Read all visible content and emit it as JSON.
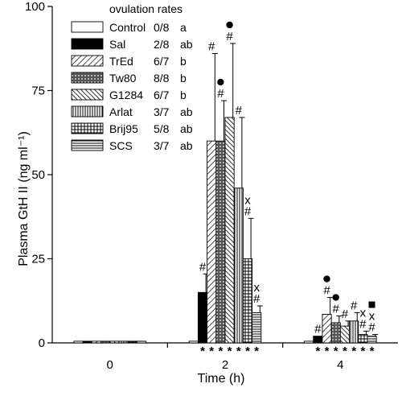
{
  "chart_data": {
    "type": "bar",
    "ylabel": "Plasma GtH II (ng ml⁻¹)",
    "xlabel": "Time (h)",
    "ylim": [
      0,
      100
    ],
    "yticks": [
      0,
      25,
      50,
      75,
      100
    ],
    "categories": [
      "0",
      "2",
      "4"
    ],
    "legend": {
      "title": "ovulation rates",
      "placement": "top-left"
    },
    "series": [
      {
        "name": "Control",
        "rate": "0/8",
        "group": "a",
        "pattern": "white",
        "values": [
          0.5,
          0.5,
          0.5
        ],
        "errors": [
          0,
          0,
          0
        ]
      },
      {
        "name": "Sal",
        "rate": "2/8",
        "group": "ab",
        "pattern": "black",
        "values": [
          0.5,
          15,
          2
        ],
        "errors": [
          0,
          5.5,
          0
        ]
      },
      {
        "name": "TrEd",
        "rate": "6/7",
        "group": "b",
        "pattern": "diag",
        "values": [
          0.5,
          60,
          8.5
        ],
        "errors": [
          0,
          26,
          5
        ]
      },
      {
        "name": "Tw80",
        "rate": "8/8",
        "group": "b",
        "pattern": "dots",
        "values": [
          0.5,
          60,
          6
        ],
        "errors": [
          0,
          12,
          2
        ]
      },
      {
        "name": "G1284",
        "rate": "6/7",
        "group": "b",
        "pattern": "diag2",
        "values": [
          0.5,
          67,
          5
        ],
        "errors": [
          0,
          22,
          1.5
        ]
      },
      {
        "name": "Arlat",
        "rate": "3/7",
        "group": "ab",
        "pattern": "vlines",
        "values": [
          0.5,
          46,
          6.5
        ],
        "errors": [
          0,
          21,
          2.5
        ]
      },
      {
        "name": "Brij95",
        "rate": "5/8",
        "group": "ab",
        "pattern": "grid",
        "values": [
          0.5,
          25,
          2.5
        ],
        "errors": [
          0,
          12,
          1
        ]
      },
      {
        "name": "SCS",
        "rate": "3/7",
        "group": "ab",
        "pattern": "hlines",
        "values": [
          0.5,
          9,
          2
        ],
        "errors": [
          0,
          2,
          0.5
        ]
      }
    ],
    "annotations": [
      {
        "category": 1,
        "series": 1,
        "symbols": [
          "#"
        ]
      },
      {
        "category": 1,
        "series": 2,
        "symbols": [
          "#"
        ]
      },
      {
        "category": 1,
        "series": 3,
        "symbols": [
          "●",
          "#"
        ]
      },
      {
        "category": 1,
        "series": 4,
        "symbols": [
          "●",
          "#"
        ]
      },
      {
        "category": 1,
        "series": 5,
        "symbols": [
          "#"
        ]
      },
      {
        "category": 1,
        "series": 6,
        "symbols": [
          "x",
          "#"
        ]
      },
      {
        "category": 1,
        "series": 7,
        "symbols": [
          "x",
          "#"
        ]
      },
      {
        "category": 2,
        "series": 1,
        "symbols": [
          "#"
        ]
      },
      {
        "category": 2,
        "series": 2,
        "symbols": [
          "●",
          "#"
        ]
      },
      {
        "category": 2,
        "series": 3,
        "symbols": [
          "●",
          "#"
        ]
      },
      {
        "category": 2,
        "series": 4,
        "symbols": [
          "#"
        ]
      },
      {
        "category": 2,
        "series": 5,
        "symbols": [
          "#"
        ]
      },
      {
        "category": 2,
        "series": 6,
        "symbols": [
          "x",
          "#"
        ]
      },
      {
        "category": 2,
        "series": 7,
        "symbols": [
          "■",
          "x",
          "#"
        ]
      }
    ],
    "axis_marker": "*",
    "axis_marker_categories": [
      1,
      2
    ]
  }
}
